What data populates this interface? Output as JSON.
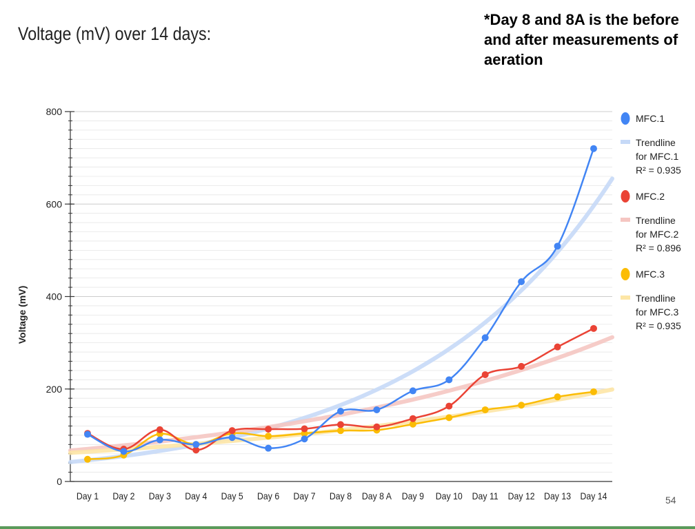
{
  "slide": {
    "title": "Voltage (mV) over 14 days:",
    "note": "*Day 8 and 8A is the before and after measurements of aeration",
    "page_number": "54"
  },
  "chart_data": {
    "type": "line",
    "ylabel": "Voltage (mV)",
    "xlabel": "",
    "ylim": [
      0,
      800
    ],
    "yticks": [
      0,
      200,
      400,
      600,
      800
    ],
    "grid": true,
    "legend_position": "right",
    "categories": [
      "Day 1",
      "Day 2",
      "Day 3",
      "Day 4",
      "Day 5",
      "Day 6",
      "Day 7",
      "Day 8",
      "Day 8 A",
      "Day 9",
      "Day 10",
      "Day 11",
      "Day 12",
      "Day 13",
      "Day 14"
    ],
    "series": [
      {
        "name": "MFC.1",
        "color": "#4285f4",
        "values": [
          102,
          65,
          90,
          80,
          95,
          72,
          92,
          152,
          155,
          196,
          220,
          311,
          432,
          509,
          720
        ]
      },
      {
        "name": "MFC.2",
        "color": "#ea4335",
        "values": [
          104,
          70,
          112,
          68,
          110,
          113,
          114,
          123,
          118,
          136,
          163,
          231,
          249,
          291,
          331
        ]
      },
      {
        "name": "MFC.3",
        "color": "#fbbc04",
        "values": [
          48,
          57,
          103,
          80,
          104,
          98,
          104,
          110,
          111,
          124,
          138,
          155,
          165,
          183,
          194
        ]
      }
    ],
    "trendlines": [
      {
        "name": "Trendline for MFC.1",
        "label_lines": [
          "Trendline",
          "for MFC.1",
          "R² = 0.935"
        ],
        "color": "#c6d9f7",
        "r2": "R² = 0.935",
        "start": 42,
        "end": 655
      },
      {
        "name": "Trendline for MFC.2",
        "label_lines": [
          "Trendline",
          "for MFC.2",
          "R² = 0.896"
        ],
        "color": "#f5c6c2",
        "r2": "R² = 0.896",
        "start": 67,
        "end": 312
      },
      {
        "name": "Trendline for MFC.3",
        "label_lines": [
          "Trendline",
          "for MFC.3",
          "R² = 0.935"
        ],
        "color": "#fde6a6",
        "r2": "R² = 0.935",
        "start": 62,
        "end": 199
      }
    ]
  }
}
